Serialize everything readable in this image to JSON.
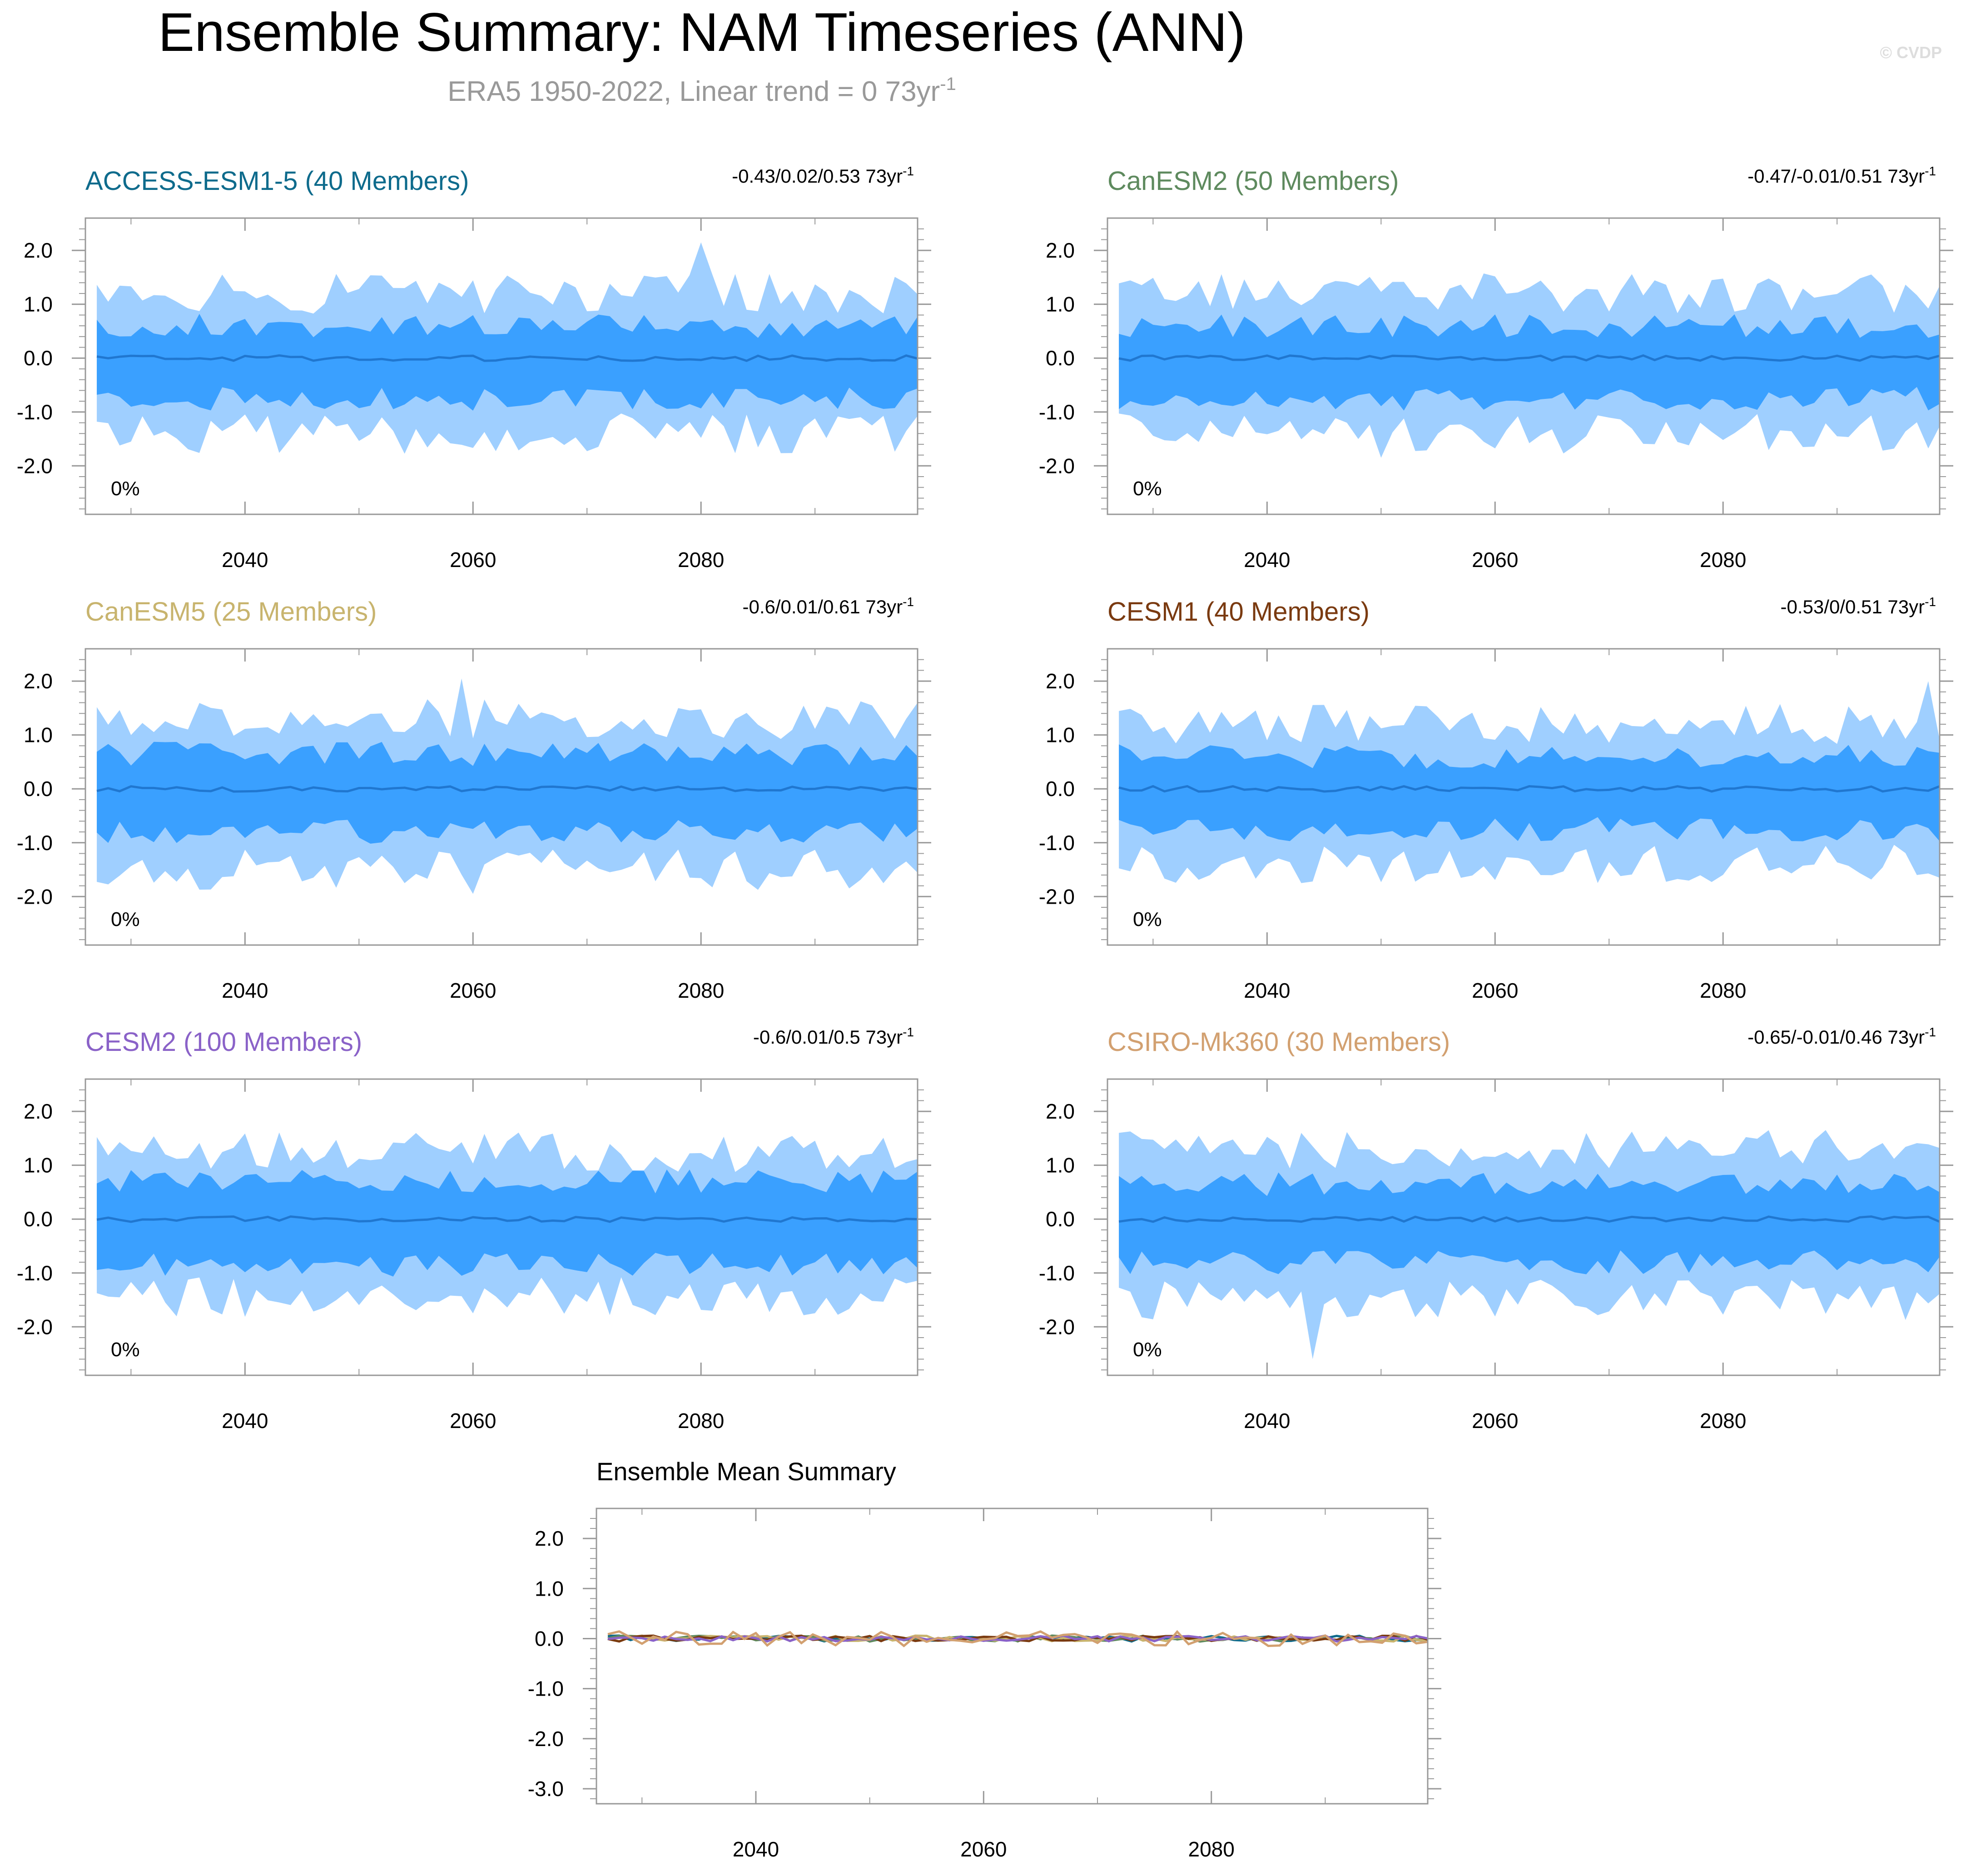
{
  "header": {
    "title": "Ensemble Summary: NAM Timeseries (ANN)",
    "subtitle": "ERA5 1950-2022, Linear trend = 0 73yr",
    "subtitle_sup": "-1",
    "watermark": "© CVDP"
  },
  "colors": {
    "outer_band": "#9fcfff",
    "inner_band": "#3aa0ff",
    "median_line": "#2077d0",
    "frame": "#999999"
  },
  "chart_data": [
    {
      "type": "area",
      "title": "ACCESS-ESM1-5 (40 Members)",
      "title_color": "#0e6b8c",
      "trend_label": "-0.43/0.02/0.53 73yr",
      "trend_sup": "-1",
      "pct_label": "0%",
      "xlim": [
        2026,
        2099
      ],
      "ylim": [
        -2.9,
        2.6
      ],
      "xticks": [
        "2040",
        "2060",
        "2080"
      ],
      "yticks": [
        "2.0",
        "1.0",
        "0.0",
        "-1.0",
        "-2.0"
      ],
      "years": [
        2027,
        2099
      ],
      "outer_max_approx": 1.2,
      "inner_max_approx": 0.6,
      "median_approx": 0.0,
      "notable": [
        {
          "year": 2080,
          "outer_max": 2.15
        }
      ]
    },
    {
      "type": "area",
      "title": "CanESM2 (50 Members)",
      "title_color": "#5e8a5e",
      "trend_label": "-0.47/-0.01/0.51 73yr",
      "trend_sup": "-1",
      "pct_label": "0%",
      "xlim": [
        2026,
        2099
      ],
      "ylim": [
        -2.9,
        2.6
      ],
      "xticks": [
        "2040",
        "2060",
        "2080"
      ],
      "yticks": [
        "2.0",
        "1.0",
        "0.0",
        "-1.0",
        "-2.0"
      ],
      "years": [
        2027,
        2099
      ],
      "outer_max_approx": 1.2,
      "inner_max_approx": 0.6,
      "median_approx": 0.0,
      "notable": [
        {
          "year": 2050,
          "outer_min": -1.85
        }
      ]
    },
    {
      "type": "area",
      "title": "CanESM5 (25 Members)",
      "title_color": "#c8b46e",
      "trend_label": "-0.6/0.01/0.61 73yr",
      "trend_sup": "-1",
      "pct_label": "0%",
      "xlim": [
        2026,
        2099
      ],
      "ylim": [
        -2.9,
        2.6
      ],
      "xticks": [
        "2040",
        "2060",
        "2080"
      ],
      "yticks": [
        "2.0",
        "1.0",
        "0.0",
        "-1.0",
        "-2.0"
      ],
      "years": [
        2027,
        2099
      ],
      "outer_max_approx": 1.3,
      "inner_max_approx": 0.65,
      "median_approx": 0.0,
      "notable": [
        {
          "year": 2059,
          "outer_max": 2.05
        },
        {
          "year": 2060,
          "outer_min": -1.95
        }
      ]
    },
    {
      "type": "area",
      "title": "CESM1 (40 Members)",
      "title_color": "#7a3a10",
      "trend_label": "-0.53/0/0.51 73yr",
      "trend_sup": "-1",
      "pct_label": "0%",
      "xlim": [
        2026,
        2099
      ],
      "ylim": [
        -2.9,
        2.6
      ],
      "xticks": [
        "2040",
        "2060",
        "2080"
      ],
      "yticks": [
        "2.0",
        "1.0",
        "0.0",
        "-1.0",
        "-2.0"
      ],
      "years": [
        2027,
        2099
      ],
      "outer_max_approx": 1.2,
      "inner_max_approx": 0.6,
      "median_approx": 0.0,
      "notable": [
        {
          "year": 2098,
          "outer_max": 2.0
        }
      ]
    },
    {
      "type": "area",
      "title": "CESM2 (100 Members)",
      "title_color": "#8a62c8",
      "trend_label": "-0.6/0.01/0.5 73yr",
      "trend_sup": "-1",
      "pct_label": "0%",
      "xlim": [
        2026,
        2099
      ],
      "ylim": [
        -2.9,
        2.6
      ],
      "xticks": [
        "2040",
        "2060",
        "2080"
      ],
      "yticks": [
        "2.0",
        "1.0",
        "0.0",
        "-1.0",
        "-2.0"
      ],
      "years": [
        2027,
        2099
      ],
      "outer_max_approx": 1.25,
      "inner_max_approx": 0.7,
      "median_approx": 0.0,
      "notable": []
    },
    {
      "type": "area",
      "title": "CSIRO-Mk360 (30 Members)",
      "title_color": "#d2a070",
      "trend_label": "-0.65/-0.01/0.46 73yr",
      "trend_sup": "-1",
      "pct_label": "0%",
      "xlim": [
        2026,
        2099
      ],
      "ylim": [
        -2.9,
        2.6
      ],
      "xticks": [
        "2040",
        "2060",
        "2080"
      ],
      "yticks": [
        "2.0",
        "1.0",
        "0.0",
        "-1.0",
        "-2.0"
      ],
      "years": [
        2027,
        2099
      ],
      "outer_max_approx": 1.3,
      "inner_max_approx": 0.65,
      "median_approx": 0.0,
      "notable": [
        {
          "year": 2044,
          "outer_min": -2.6
        }
      ]
    },
    {
      "type": "line",
      "title": "Ensemble Mean Summary",
      "title_color": "#000000",
      "xlim": [
        2026,
        2099
      ],
      "ylim": [
        -3.3,
        2.6
      ],
      "xticks": [
        "2040",
        "2060",
        "2080"
      ],
      "yticks": [
        "2.0",
        "1.0",
        "0.0",
        "-1.0",
        "-2.0",
        "-3.0"
      ],
      "series_colors": [
        "#0e6b8c",
        "#5e8a5e",
        "#c8b46e",
        "#7a3a10",
        "#8a62c8",
        "#d2a070"
      ],
      "years": [
        2027,
        2099
      ],
      "value_range_approx": [
        -0.15,
        0.15
      ]
    }
  ]
}
